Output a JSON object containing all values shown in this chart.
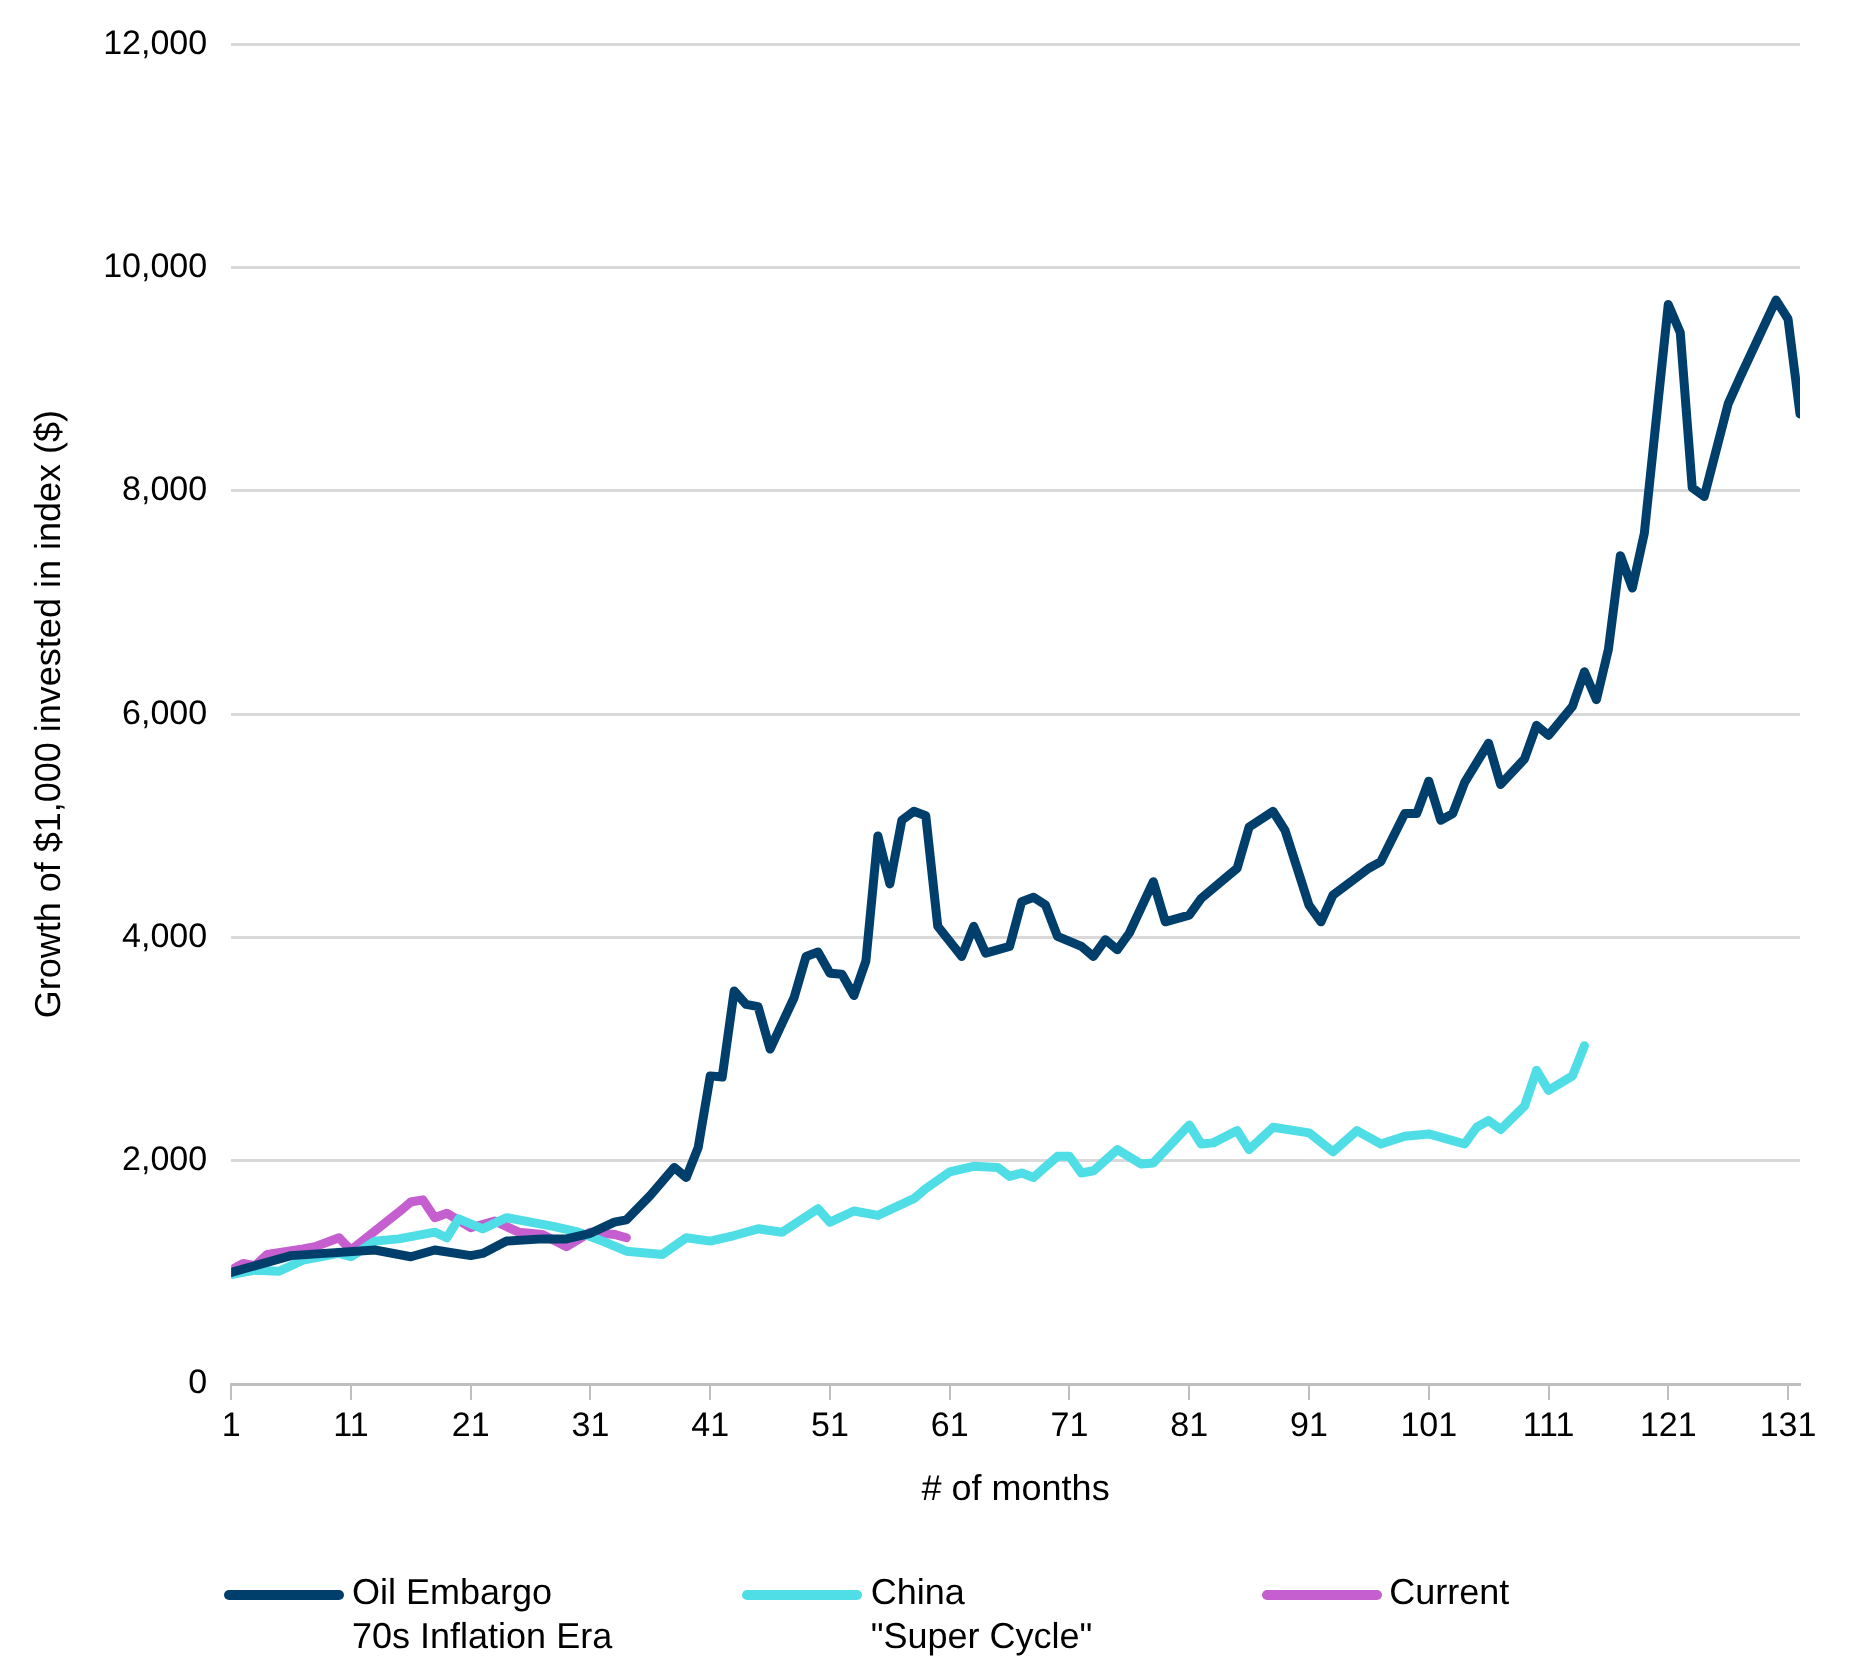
{
  "chart_data": {
    "type": "line",
    "xlabel": "# of months",
    "ylabel": "Growth of $1,000 invested in index ($)",
    "xlim": [
      1,
      132
    ],
    "xticks": [
      1,
      11,
      21,
      31,
      41,
      51,
      61,
      71,
      81,
      91,
      101,
      111,
      121,
      131
    ],
    "ylim": [
      0,
      12000
    ],
    "yticks": [
      0,
      {
        "value": 2000,
        "label": "2,000"
      },
      {
        "value": 4000,
        "label": "4,000"
      },
      {
        "value": 6000,
        "label": "6,000"
      },
      {
        "value": 8000,
        "label": "8,000"
      },
      {
        "value": 10000,
        "label": "10,000"
      },
      {
        "value": 12000,
        "label": "12,000"
      }
    ],
    "grid": "y",
    "legend": "bottom",
    "marker": "none",
    "line_style": "solid",
    "series": [
      {
        "name": "Oil Embargo\n70s Inflation Era",
        "color": "#003f6b",
        "x": [
          1,
          6,
          13,
          16,
          18,
          21,
          22,
          24,
          27,
          29,
          31,
          33,
          34,
          36,
          38,
          39,
          40,
          41,
          42,
          43,
          44,
          45,
          46,
          48,
          49,
          50,
          51,
          52,
          53,
          54,
          55,
          56,
          57,
          58,
          59,
          60,
          62,
          63,
          64,
          66,
          67,
          68,
          69,
          70,
          72,
          73,
          74,
          75,
          76,
          78,
          79,
          81,
          82,
          84,
          85,
          86,
          88,
          89,
          91,
          92,
          93,
          96,
          97,
          99,
          100,
          101,
          102,
          103,
          104,
          106,
          107,
          109,
          110,
          111,
          113,
          114,
          115,
          116,
          117,
          118,
          119,
          121,
          122,
          123,
          124,
          126,
          127,
          130,
          131,
          132
        ],
        "values": [
          1000,
          1150,
          1200,
          1140,
          1200,
          1150,
          1170,
          1280,
          1300,
          1300,
          1350,
          1450,
          1470,
          1690,
          1940,
          1850,
          2120,
          2760,
          2750,
          3520,
          3400,
          3380,
          3000,
          3460,
          3830,
          3870,
          3680,
          3670,
          3480,
          3790,
          4910,
          4480,
          5050,
          5130,
          5090,
          4100,
          3830,
          4100,
          3860,
          3920,
          4320,
          4360,
          4290,
          4010,
          3920,
          3830,
          3980,
          3890,
          4040,
          4500,
          4140,
          4200,
          4350,
          4530,
          4620,
          4990,
          5130,
          4960,
          4290,
          4140,
          4380,
          4620,
          4680,
          5110,
          5110,
          5400,
          5050,
          5110,
          5390,
          5740,
          5370,
          5600,
          5900,
          5810,
          6070,
          6380,
          6130,
          6580,
          7420,
          7130,
          7620,
          9670,
          9420,
          8030,
          7950,
          8780,
          9020,
          9710,
          9540,
          8690
        ]
      },
      {
        "name": "China\n\"Super Cycle\"",
        "color": "#4fdde6",
        "x": [
          1,
          3,
          5,
          7,
          10,
          11,
          13,
          15,
          18,
          19,
          20,
          22,
          24,
          26,
          28,
          30,
          32,
          34,
          37,
          39,
          41,
          43,
          45,
          47,
          50,
          51,
          53,
          55,
          58,
          59,
          61,
          63,
          65,
          66,
          67,
          68,
          70,
          71,
          72,
          73,
          75,
          77,
          78,
          81,
          82,
          83,
          85,
          86,
          88,
          91,
          93,
          95,
          97,
          99,
          101,
          103,
          104,
          105,
          106,
          107,
          109,
          110,
          111,
          113,
          114
        ],
        "values": [
          980,
          1020,
          1010,
          1110,
          1170,
          1140,
          1280,
          1300,
          1360,
          1310,
          1480,
          1390,
          1490,
          1450,
          1410,
          1360,
          1280,
          1190,
          1160,
          1310,
          1280,
          1330,
          1390,
          1360,
          1570,
          1450,
          1550,
          1510,
          1660,
          1750,
          1900,
          1950,
          1940,
          1860,
          1890,
          1850,
          2040,
          2040,
          1890,
          1910,
          2100,
          1970,
          1980,
          2320,
          2150,
          2160,
          2270,
          2100,
          2300,
          2250,
          2080,
          2270,
          2150,
          2220,
          2240,
          2180,
          2150,
          2300,
          2360,
          2280,
          2490,
          2810,
          2630,
          2760,
          3030
        ]
      },
      {
        "name": "Current",
        "color": "#c55fcf",
        "x": [
          1,
          2,
          3,
          4,
          7,
          8,
          10,
          11,
          13,
          15,
          16,
          17,
          18,
          19,
          21,
          23,
          25,
          27,
          29,
          31,
          33,
          34
        ],
        "values": [
          1020,
          1080,
          1060,
          1160,
          1210,
          1230,
          1310,
          1200,
          1370,
          1540,
          1630,
          1650,
          1490,
          1530,
          1400,
          1460,
          1360,
          1340,
          1230,
          1360,
          1340,
          1310
        ]
      }
    ]
  }
}
